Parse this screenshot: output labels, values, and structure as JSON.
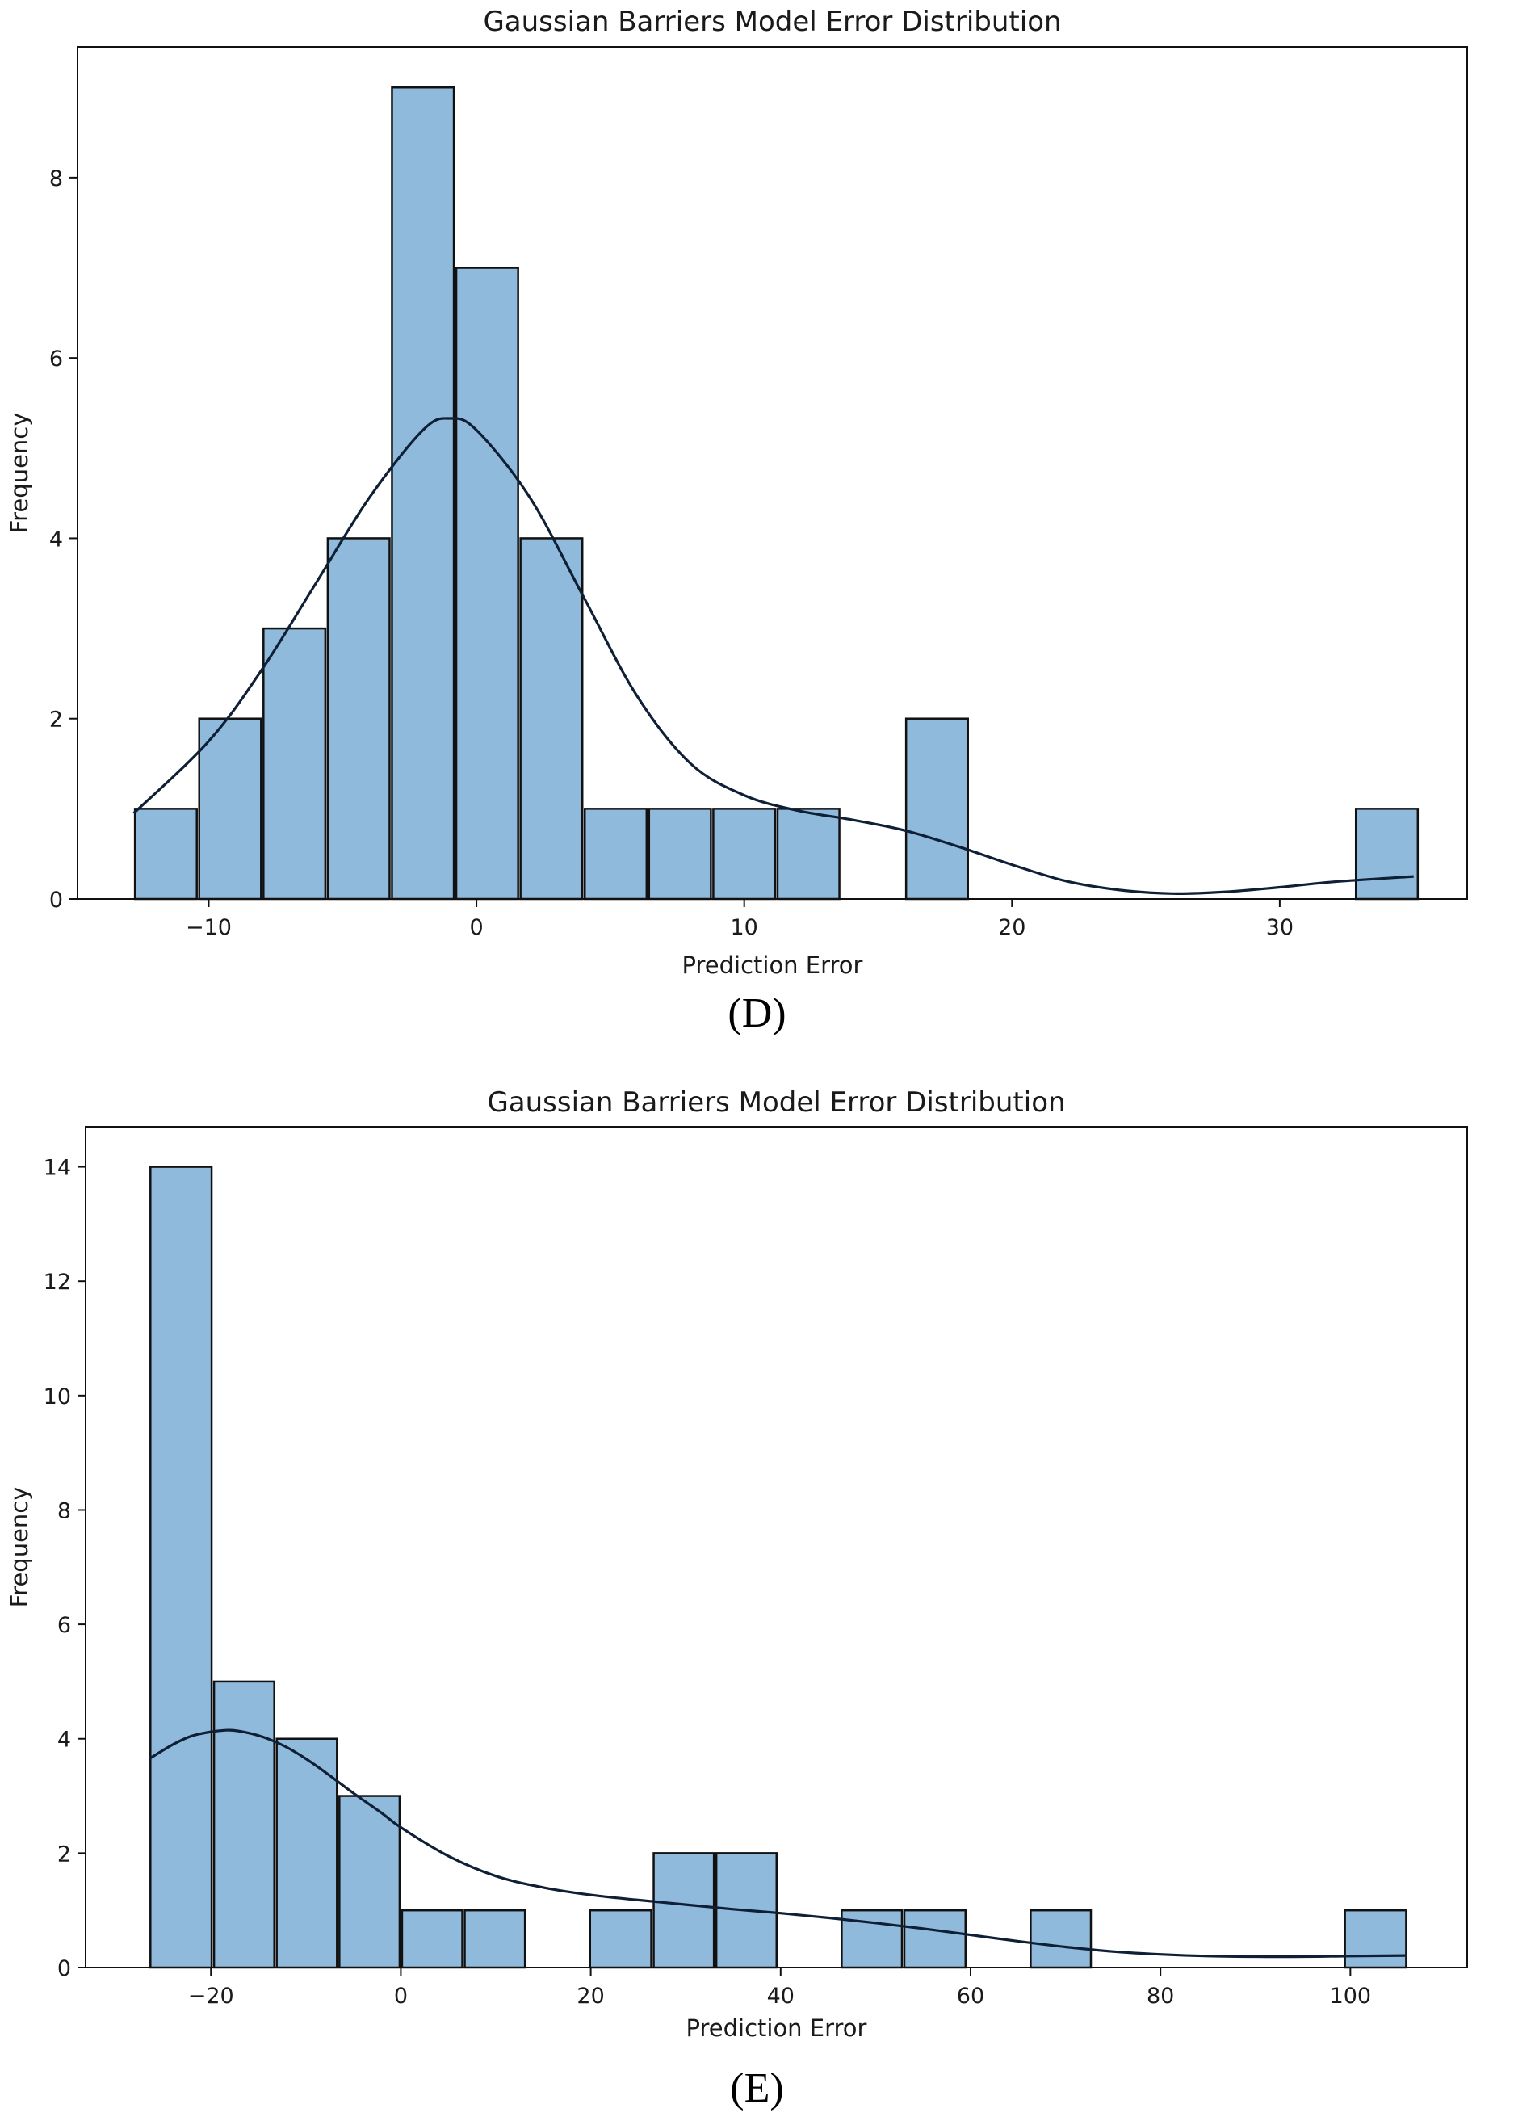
{
  "chart_data": [
    {
      "type": "bar",
      "subtype": "histogram-with-kde",
      "panel_label": "(D)",
      "title": "Gaussian Barriers Model Error Distribution",
      "xlabel": "Prediction Error",
      "ylabel": "Frequency",
      "xlim": [
        -14.9,
        37.0
      ],
      "ylim": [
        0,
        9.45
      ],
      "xticks": [
        -10,
        0,
        10,
        20,
        30
      ],
      "xtick_labels": [
        "−10",
        "0",
        "10",
        "20",
        "30"
      ],
      "yticks": [
        0,
        2,
        4,
        6,
        8
      ],
      "ytick_labels": [
        "0",
        "2",
        "4",
        "6",
        "8"
      ],
      "bins": [
        {
          "x0": -12.8,
          "x1": -10.4,
          "count": 1
        },
        {
          "x0": -10.4,
          "x1": -8.0,
          "count": 2
        },
        {
          "x0": -8.0,
          "x1": -5.6,
          "count": 3
        },
        {
          "x0": -5.6,
          "x1": -3.2,
          "count": 4
        },
        {
          "x0": -3.2,
          "x1": -0.8,
          "count": 9
        },
        {
          "x0": -0.8,
          "x1": 1.6,
          "count": 7
        },
        {
          "x0": 1.6,
          "x1": 4.0,
          "count": 4
        },
        {
          "x0": 4.0,
          "x1": 6.4,
          "count": 1
        },
        {
          "x0": 6.4,
          "x1": 8.8,
          "count": 1
        },
        {
          "x0": 8.8,
          "x1": 11.2,
          "count": 1
        },
        {
          "x0": 11.2,
          "x1": 13.6,
          "count": 1
        },
        {
          "x0": 16.0,
          "x1": 18.4,
          "count": 2
        },
        {
          "x0": 32.8,
          "x1": 35.2,
          "count": 1
        }
      ],
      "kde": {
        "x": [
          -12.8,
          -10,
          -8,
          -6,
          -4,
          -2,
          -1,
          0,
          2,
          4,
          6,
          8,
          10,
          12,
          14,
          16,
          18,
          20,
          22,
          24,
          26,
          28,
          30,
          32,
          35
        ],
        "y": [
          0.95,
          1.75,
          2.55,
          3.5,
          4.45,
          5.2,
          5.33,
          5.2,
          4.45,
          3.35,
          2.25,
          1.5,
          1.15,
          0.98,
          0.88,
          0.76,
          0.58,
          0.38,
          0.2,
          0.1,
          0.06,
          0.08,
          0.13,
          0.19,
          0.25
        ]
      },
      "colors": {
        "bar_fill": "#8fbadb",
        "bar_edge": "#111111",
        "kde": "#0e1f36"
      }
    },
    {
      "type": "bar",
      "subtype": "histogram-with-kde",
      "panel_label": "(E)",
      "title": "Gaussian Barriers Model Error Distribution",
      "xlabel": "Prediction Error",
      "ylabel": "Frequency",
      "xlim": [
        -33.2,
        112.3
      ],
      "ylim": [
        0,
        14.7
      ],
      "xticks": [
        -20,
        0,
        20,
        40,
        60,
        80,
        100
      ],
      "xtick_labels": [
        "−20",
        "0",
        "20",
        "40",
        "60",
        "80",
        "100"
      ],
      "yticks": [
        0,
        2,
        4,
        6,
        8,
        10,
        12,
        14
      ],
      "ytick_labels": [
        "0",
        "2",
        "4",
        "6",
        "8",
        "10",
        "12",
        "14"
      ],
      "bins": [
        {
          "x0": -26.5,
          "x1": -19.8,
          "count": 14
        },
        {
          "x0": -19.8,
          "x1": -13.2,
          "count": 5
        },
        {
          "x0": -13.2,
          "x1": -6.6,
          "count": 4
        },
        {
          "x0": -6.6,
          "x1": 0.0,
          "count": 3
        },
        {
          "x0": 0.0,
          "x1": 6.6,
          "count": 1
        },
        {
          "x0": 6.6,
          "x1": 13.2,
          "count": 1
        },
        {
          "x0": 19.8,
          "x1": 26.5,
          "count": 1
        },
        {
          "x0": 26.5,
          "x1": 33.1,
          "count": 2
        },
        {
          "x0": 33.1,
          "x1": 39.7,
          "count": 2
        },
        {
          "x0": 46.3,
          "x1": 52.9,
          "count": 1
        },
        {
          "x0": 52.9,
          "x1": 59.6,
          "count": 1
        },
        {
          "x0": 66.2,
          "x1": 72.8,
          "count": 1
        },
        {
          "x0": 99.3,
          "x1": 106.0,
          "count": 1
        }
      ],
      "kde": {
        "x": [
          -26.5,
          -24,
          -22,
          -20,
          -18,
          -16,
          -14,
          -12,
          -10,
          -8,
          -5,
          -2,
          0,
          5,
          10,
          15,
          20,
          25,
          30,
          35,
          40,
          45,
          50,
          55,
          60,
          65,
          70,
          75,
          80,
          85,
          90,
          95,
          100,
          106
        ],
        "y": [
          3.65,
          3.9,
          4.05,
          4.12,
          4.15,
          4.1,
          4.0,
          3.85,
          3.65,
          3.42,
          3.05,
          2.7,
          2.45,
          1.95,
          1.6,
          1.4,
          1.27,
          1.18,
          1.1,
          1.02,
          0.95,
          0.87,
          0.78,
          0.68,
          0.57,
          0.46,
          0.36,
          0.28,
          0.23,
          0.2,
          0.19,
          0.19,
          0.2,
          0.21
        ]
      },
      "colors": {
        "bar_fill": "#8fbadb",
        "bar_edge": "#111111",
        "kde": "#0e1f36"
      }
    }
  ]
}
